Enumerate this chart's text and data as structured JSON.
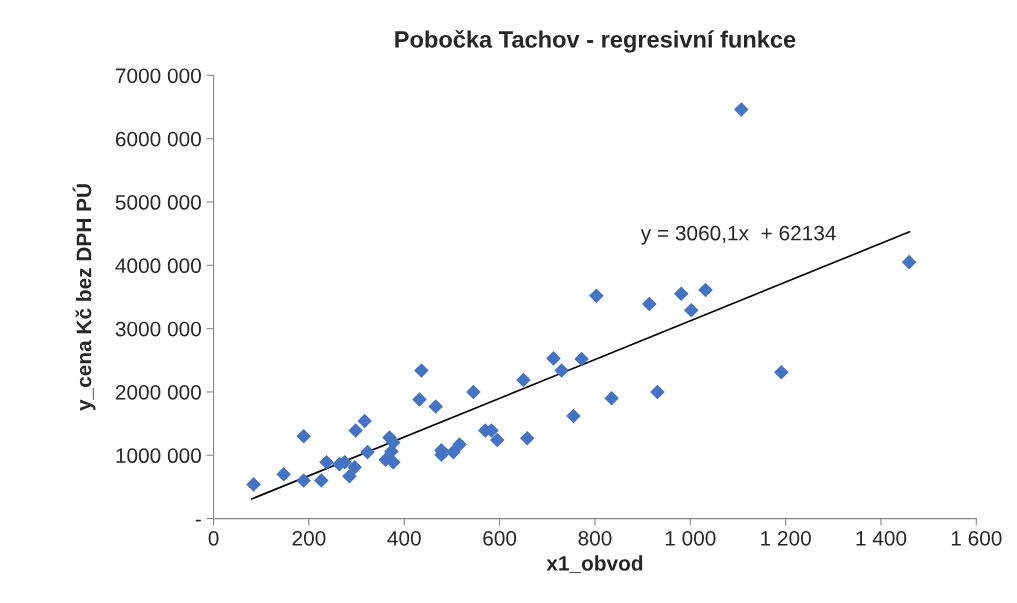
{
  "chart_data": {
    "type": "scatter",
    "title": "Pobočka Tachov - regresivní funkce",
    "xlabel": "x1_obvod",
    "ylabel": "y_cena Kč bez DPH PÚ",
    "series": [
      {
        "color": "#4472c4",
        "marker": "diamond",
        "x": [
          84,
          147,
          189,
          189,
          226,
          237,
          264,
          275,
          296,
          285,
          298,
          317,
          323,
          369,
          377,
          373,
          361,
          377,
          432,
          436,
          466,
          478,
          478,
          503,
          516,
          545,
          570,
          583,
          595,
          650,
          658,
          713,
          730,
          772,
          755,
          835,
          931,
          803,
          914,
          981,
          1002,
          1032,
          1107,
          1191,
          1459
        ],
        "values": [
          540000,
          700000,
          1300000,
          600000,
          600000,
          890000,
          860000,
          890000,
          810000,
          670000,
          1390000,
          1540000,
          1050000,
          1280000,
          1200000,
          1060000,
          930000,
          890000,
          1880000,
          2340000,
          1770000,
          1080000,
          1010000,
          1050000,
          1170000,
          2000000,
          1390000,
          1390000,
          1240000,
          2190000,
          1270000,
          2530000,
          2340000,
          2520000,
          1620000,
          1900000,
          2000000,
          3520000,
          3390000,
          3550000,
          3290000,
          3610000,
          6460000,
          2310000,
          4050000
        ]
      },
      {
        "type": "line",
        "color": "#000000",
        "marker": "none",
        "line_style": "solid",
        "x": [
          80,
          1460
        ],
        "values": [
          310000,
          4530000
        ]
      }
    ],
    "annotations": [
      "y = 3060,1x  + 62134"
    ],
    "xlim": [
      0,
      1600
    ],
    "xticks": [
      0,
      200,
      400,
      600,
      800,
      {
        "value": 1000,
        "label": "1 000"
      },
      {
        "value": 1200,
        "label": "1 200"
      },
      {
        "value": 1400,
        "label": "1 400"
      },
      {
        "value": 1600,
        "label": "1 600"
      }
    ],
    "ylim": [
      0,
      7000000
    ],
    "yticks": [
      {
        "value": 0,
        "label": "-"
      },
      {
        "value": 1000000,
        "label": "1000 000"
      },
      {
        "value": 2000000,
        "label": "2000 000"
      },
      {
        "value": 3000000,
        "label": "3000 000"
      },
      {
        "value": 4000000,
        "label": "4000 000"
      },
      {
        "value": 5000000,
        "label": "5000 000"
      },
      {
        "value": 6000000,
        "label": "6000 000"
      },
      {
        "value": 7000000,
        "label": "7000 000"
      }
    ],
    "grid": false,
    "legend": false
  }
}
